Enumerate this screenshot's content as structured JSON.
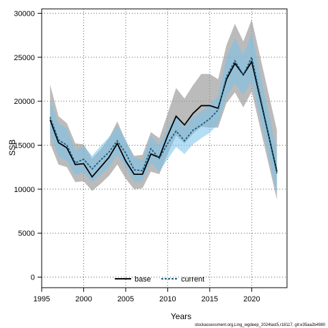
{
  "chart_data": {
    "type": "line",
    "xlabel": "Years",
    "ylabel": "SSB",
    "xlim": [
      1995,
      2024.2
    ],
    "ylim": [
      -1200,
      30500
    ],
    "xticks": [
      1995,
      2000,
      2005,
      2010,
      2015,
      2020
    ],
    "yticks": [
      0,
      5000,
      10000,
      15000,
      20000,
      25000,
      30000
    ],
    "grid": true,
    "legend_position": "bottom-center",
    "x": [
      1996,
      1997,
      1998,
      1999,
      2000,
      2001,
      2002,
      2003,
      2004,
      2005,
      2006,
      2007,
      2008,
      2009,
      2010,
      2011,
      2012,
      2013,
      2014,
      2015,
      2016,
      2017,
      2018,
      2019,
      2020,
      2023
    ],
    "series": [
      {
        "name": "base",
        "color": "#000000",
        "values": [
          17900,
          15300,
          14700,
          12800,
          12900,
          11400,
          12500,
          13600,
          15200,
          13200,
          11700,
          11700,
          14000,
          13600,
          16100,
          18300,
          17300,
          18600,
          19500,
          19500,
          19200,
          22500,
          24300,
          23000,
          24500,
          12000
        ],
        "band_lower": [
          15200,
          12800,
          12500,
          10800,
          10900,
          9800,
          10600,
          11500,
          12800,
          11200,
          10000,
          10100,
          12000,
          11700,
          14000,
          16100,
          15200,
          16300,
          17100,
          17000,
          17000,
          19800,
          21000,
          19300,
          21100,
          8800
        ],
        "band_upper": [
          21900,
          18300,
          17500,
          15200,
          15100,
          13500,
          14500,
          15800,
          17700,
          15500,
          13800,
          13900,
          16500,
          15800,
          18600,
          21500,
          20300,
          21800,
          23100,
          23100,
          22500,
          26400,
          28800,
          26800,
          29300,
          16700
        ]
      },
      {
        "name": "current",
        "color": "#1a5a7a",
        "values": [
          18200,
          15600,
          15000,
          13000,
          13400,
          12300,
          13300,
          14200,
          15500,
          14100,
          12200,
          12100,
          14600,
          13500,
          15200,
          16600,
          15500,
          16700,
          17300,
          18000,
          19000,
          22800,
          24600,
          23000,
          25000,
          11800
        ],
        "band_lower": [
          16300,
          13700,
          13200,
          11600,
          11900,
          10800,
          11600,
          12500,
          13900,
          12500,
          10800,
          10900,
          13000,
          12000,
          13400,
          14800,
          14000,
          15100,
          15800,
          16400,
          17400,
          20600,
          22000,
          20700,
          22300,
          9500
        ],
        "band_upper": [
          20100,
          17500,
          16900,
          14400,
          14900,
          13800,
          14900,
          15900,
          17200,
          15600,
          13600,
          13300,
          16100,
          15000,
          17000,
          18400,
          17000,
          18300,
          18800,
          19600,
          20600,
          25000,
          27200,
          25300,
          27700,
          14200
        ]
      }
    ],
    "caption": "stockassessment.org,Ling_wgdeep_2024last5,r18117, git:e35aa2b4980"
  }
}
